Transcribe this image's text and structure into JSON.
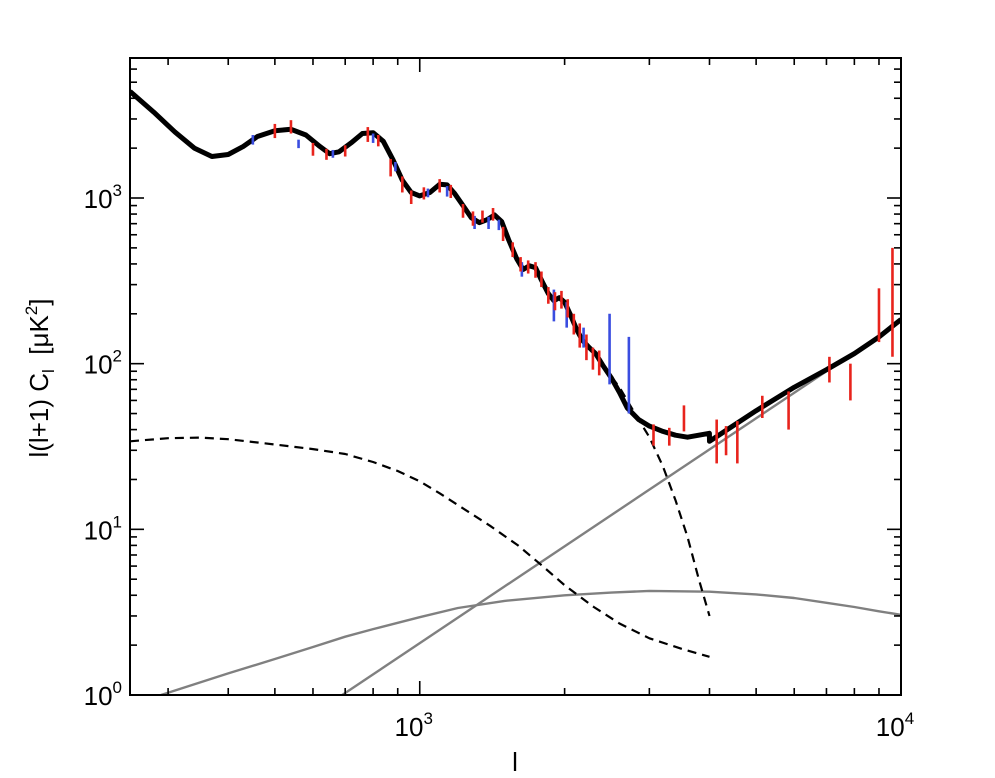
{
  "chart_data": {
    "type": "line",
    "title": "",
    "xlabel": "l",
    "ylabel_parts": {
      "main": "l(l+1) C",
      "sub": "l",
      "unit_pre": "  [μK",
      "unit_sup": "2",
      "unit_post": "]"
    },
    "xscale": "log",
    "yscale": "log",
    "xlim": [
      250,
      10000
    ],
    "ylim": [
      1,
      7000
    ],
    "grid": false,
    "legend": "none",
    "xticks": [
      {
        "value": 1000,
        "base": "10",
        "exp": "3"
      },
      {
        "value": 10000,
        "base": "10",
        "exp": "4"
      }
    ],
    "yticks": [
      {
        "value": 1,
        "base": "10",
        "exp": "0"
      },
      {
        "value": 10,
        "base": "10",
        "exp": "1"
      },
      {
        "value": 100,
        "base": "10",
        "exp": "2"
      },
      {
        "value": 1000,
        "base": "10",
        "exp": "3"
      }
    ],
    "colors": {
      "total": "#000000",
      "dashed": "#000000",
      "gray": "#808080",
      "red": "#e8231c",
      "blue": "#3a4de0"
    },
    "series": [
      {
        "role": "total",
        "style": "solid-thick",
        "points": [
          [
            250,
            4400
          ],
          [
            280,
            3300
          ],
          [
            310,
            2500
          ],
          [
            340,
            2000
          ],
          [
            370,
            1780
          ],
          [
            400,
            1830
          ],
          [
            430,
            2050
          ],
          [
            460,
            2350
          ],
          [
            500,
            2550
          ],
          [
            540,
            2600
          ],
          [
            580,
            2400
          ],
          [
            620,
            2050
          ],
          [
            650,
            1850
          ],
          [
            680,
            1900
          ],
          [
            720,
            2150
          ],
          [
            760,
            2450
          ],
          [
            800,
            2480
          ],
          [
            840,
            2200
          ],
          [
            880,
            1700
          ],
          [
            920,
            1280
          ],
          [
            960,
            1080
          ],
          [
            1000,
            1030
          ],
          [
            1050,
            1080
          ],
          [
            1100,
            1210
          ],
          [
            1140,
            1200
          ],
          [
            1180,
            1070
          ],
          [
            1230,
            900
          ],
          [
            1280,
            760
          ],
          [
            1330,
            710
          ],
          [
            1380,
            740
          ],
          [
            1430,
            790
          ],
          [
            1480,
            720
          ],
          [
            1530,
            560
          ],
          [
            1590,
            430
          ],
          [
            1640,
            370
          ],
          [
            1690,
            390
          ],
          [
            1740,
            380
          ],
          [
            1790,
            320
          ],
          [
            1850,
            265
          ],
          [
            1900,
            240
          ],
          [
            1950,
            250
          ],
          [
            2000,
            235
          ],
          [
            2060,
            195
          ],
          [
            2120,
            160
          ],
          [
            2180,
            138
          ],
          [
            2250,
            125
          ],
          [
            2320,
            115
          ],
          [
            2400,
            98
          ],
          [
            2500,
            82
          ],
          [
            2600,
            67
          ],
          [
            2700,
            54
          ],
          [
            2850,
            46
          ],
          [
            3000,
            42
          ],
          [
            3200,
            39
          ],
          [
            3400,
            37
          ],
          [
            3600,
            36
          ],
          [
            3800,
            37
          ],
          [
            3999,
            38
          ],
          [
            4000,
            34
          ],
          [
            4300,
            39
          ],
          [
            5000,
            52
          ],
          [
            6000,
            72
          ],
          [
            7000,
            92
          ],
          [
            8000,
            115
          ],
          [
            9000,
            145
          ],
          [
            10000,
            185
          ]
        ]
      },
      {
        "role": "primary-cmb",
        "style": "dashed",
        "points": [
          [
            2400,
            98
          ],
          [
            2600,
            72
          ],
          [
            2800,
            50
          ],
          [
            3000,
            36
          ],
          [
            3200,
            24
          ],
          [
            3400,
            15
          ],
          [
            3600,
            9
          ],
          [
            3800,
            5
          ],
          [
            4000,
            3
          ]
        ]
      },
      {
        "role": "secondary",
        "style": "dashed",
        "points": [
          [
            250,
            34
          ],
          [
            300,
            35.5
          ],
          [
            350,
            35.8
          ],
          [
            400,
            35
          ],
          [
            500,
            32.5
          ],
          [
            600,
            30.5
          ],
          [
            700,
            28.5
          ],
          [
            800,
            25.5
          ],
          [
            900,
            22.5
          ],
          [
            1000,
            19.5
          ],
          [
            1100,
            16.5
          ],
          [
            1200,
            14
          ],
          [
            1400,
            10.5
          ],
          [
            1600,
            8
          ],
          [
            1800,
            6
          ],
          [
            2000,
            4.6
          ],
          [
            2300,
            3.4
          ],
          [
            2600,
            2.7
          ],
          [
            3000,
            2.2
          ],
          [
            3500,
            1.9
          ],
          [
            4000,
            1.7
          ]
        ]
      },
      {
        "role": "foreground-power-law",
        "style": "gray",
        "points": [
          [
            690,
            1
          ],
          [
            10000,
            180
          ]
        ]
      },
      {
        "role": "foreground-clustered",
        "style": "gray",
        "points": [
          [
            290,
            1
          ],
          [
            400,
            1.35
          ],
          [
            500,
            1.65
          ],
          [
            600,
            1.95
          ],
          [
            700,
            2.25
          ],
          [
            800,
            2.5
          ],
          [
            1000,
            2.95
          ],
          [
            1200,
            3.35
          ],
          [
            1500,
            3.7
          ],
          [
            2000,
            4
          ],
          [
            2500,
            4.15
          ],
          [
            3000,
            4.25
          ],
          [
            4000,
            4.2
          ],
          [
            5000,
            4.05
          ],
          [
            6000,
            3.85
          ],
          [
            7000,
            3.6
          ],
          [
            8000,
            3.4
          ],
          [
            9000,
            3.2
          ],
          [
            10000,
            3.05
          ]
        ]
      }
    ],
    "error_bars": {
      "red": [
        [
          500,
          2300,
          2800
        ],
        [
          540,
          2450,
          2950
        ],
        [
          600,
          1800,
          2150
        ],
        [
          640,
          1700,
          1980
        ],
        [
          700,
          1780,
          2080
        ],
        [
          780,
          2180,
          2680
        ],
        [
          820,
          2050,
          2400
        ],
        [
          870,
          1350,
          1720
        ],
        [
          920,
          1080,
          1350
        ],
        [
          960,
          920,
          1110
        ],
        [
          1020,
          980,
          1160
        ],
        [
          1100,
          1080,
          1300
        ],
        [
          1160,
          1000,
          1200
        ],
        [
          1230,
          760,
          920
        ],
        [
          1290,
          680,
          830
        ],
        [
          1350,
          710,
          840
        ],
        [
          1420,
          730,
          870
        ],
        [
          1490,
          550,
          670
        ],
        [
          1560,
          440,
          540
        ],
        [
          1620,
          360,
          440
        ],
        [
          1680,
          350,
          420
        ],
        [
          1740,
          330,
          410
        ],
        [
          1790,
          290,
          360
        ],
        [
          1850,
          230,
          290
        ],
        [
          1910,
          210,
          270
        ],
        [
          1970,
          215,
          275
        ],
        [
          2030,
          190,
          245
        ],
        [
          2090,
          150,
          200
        ],
        [
          2150,
          125,
          175
        ],
        [
          2220,
          105,
          150
        ],
        [
          2290,
          92,
          125
        ],
        [
          2360,
          85,
          120
        ],
        [
          3060,
          32,
          43
        ],
        [
          3300,
          32,
          41
        ],
        [
          3540,
          39,
          56
        ],
        [
          4140,
          25,
          46
        ],
        [
          4330,
          28,
          42
        ],
        [
          4570,
          25,
          45
        ],
        [
          5150,
          47,
          64
        ],
        [
          5840,
          40,
          68
        ],
        [
          7100,
          77,
          110
        ],
        [
          7850,
          60,
          100
        ],
        [
          9000,
          135,
          285
        ],
        [
          9600,
          110,
          500
        ]
      ],
      "blue": [
        [
          450,
          2100,
          2400
        ],
        [
          560,
          2000,
          2250
        ],
        [
          660,
          1750,
          1950
        ],
        [
          800,
          2150,
          2450
        ],
        [
          890,
          1450,
          1650
        ],
        [
          1040,
          1010,
          1140
        ],
        [
          1140,
          1020,
          1180
        ],
        [
          1300,
          650,
          780
        ],
        [
          1390,
          650,
          770
        ],
        [
          1460,
          640,
          740
        ],
        [
          1630,
          335,
          410
        ],
        [
          1900,
          180,
          280
        ],
        [
          2020,
          165,
          235
        ],
        [
          2190,
          125,
          165
        ],
        [
          2480,
          75,
          200
        ],
        [
          2720,
          50,
          145
        ]
      ]
    }
  }
}
